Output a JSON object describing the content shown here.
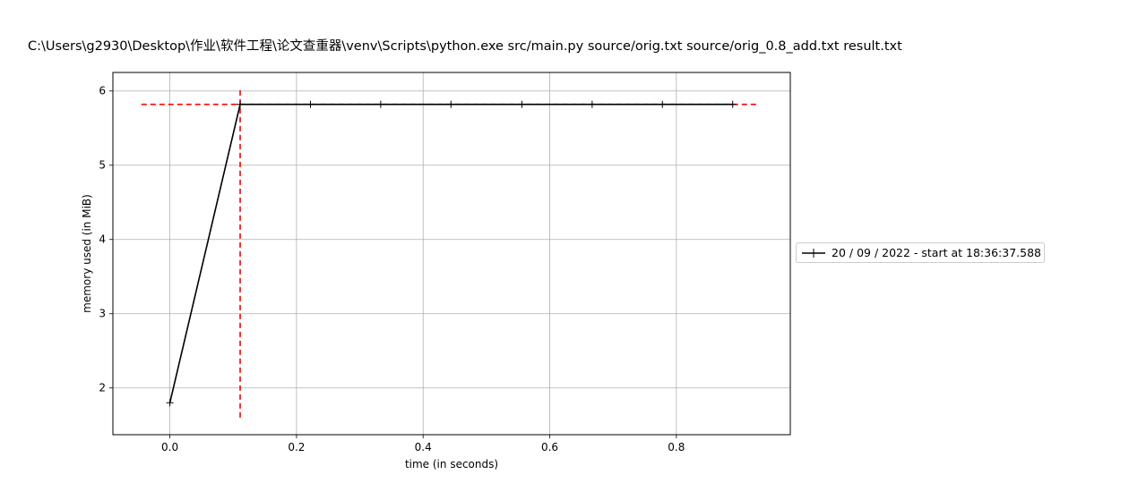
{
  "chart_data": {
    "type": "line",
    "title": "C:\\Users\\g2930\\Desktop\\作业\\软件工程\\论文查重器\\venv\\Scripts\\python.exe src/main.py source/orig.txt source/orig_0.8_add.txt result.txt",
    "xlabel": "time (in seconds)",
    "ylabel": "memory used (in MiB)",
    "xlim": [
      -0.09,
      0.98
    ],
    "ylim": [
      1.37,
      6.25
    ],
    "xticks": [
      0.0,
      0.2,
      0.4,
      0.6,
      0.8
    ],
    "xtick_labels": [
      "0.0",
      "0.2",
      "0.4",
      "0.6",
      "0.8"
    ],
    "yticks": [
      2,
      3,
      4,
      5,
      6
    ],
    "ytick_labels": [
      "2",
      "3",
      "4",
      "5",
      "6"
    ],
    "grid": true,
    "legend_position": "center-right-outside",
    "series": [
      {
        "name": "20 / 09 / 2022 - start at 18:36:37.588",
        "color": "#000000",
        "marker": "+",
        "x": [
          0.0,
          0.111,
          0.222,
          0.333,
          0.444,
          0.556,
          0.667,
          0.778,
          0.889
        ],
        "y": [
          1.8,
          5.82,
          5.82,
          5.82,
          5.82,
          5.82,
          5.82,
          5.82,
          5.82
        ]
      }
    ],
    "annotations": {
      "peak_hline": {
        "y": 5.82,
        "x_from": -0.045,
        "x_to": 0.93,
        "color": "#ff0000",
        "style": "dashed"
      },
      "peak_vline": {
        "x": 0.111,
        "y_from": 1.6,
        "y_to": 6.02,
        "color": "#ff0000",
        "style": "dashed"
      }
    }
  }
}
